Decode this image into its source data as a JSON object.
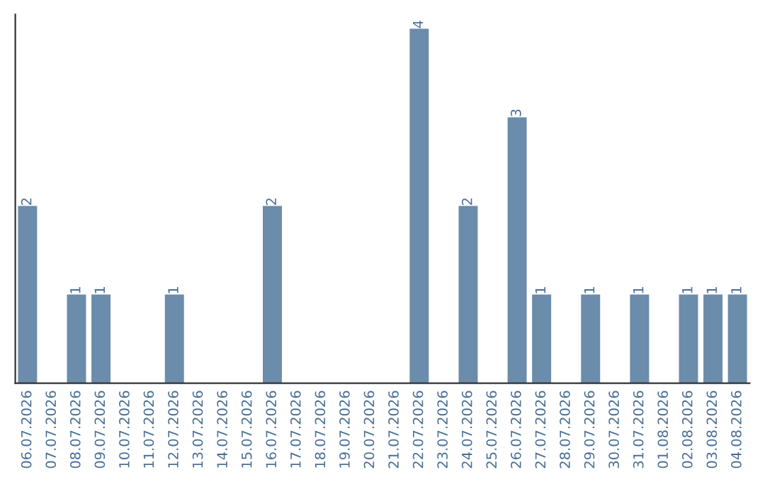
{
  "chart_data": {
    "type": "bar",
    "categories": [
      "06.07.2026",
      "07.07.2026",
      "08.07.2026",
      "09.07.2026",
      "10.07.2026",
      "11.07.2026",
      "12.07.2026",
      "13.07.2026",
      "14.07.2026",
      "15.07.2026",
      "16.07.2026",
      "17.07.2026",
      "18.07.2026",
      "19.07.2026",
      "20.07.2026",
      "21.07.2026",
      "22.07.2026",
      "23.07.2026",
      "24.07.2026",
      "25.07.2026",
      "26.07.2026",
      "27.07.2026",
      "28.07.2026",
      "29.07.2026",
      "30.07.2026",
      "31.07.2026",
      "01.08.2026",
      "02.08.2026",
      "03.08.2026",
      "04.08.2026"
    ],
    "values": [
      2,
      0,
      1,
      1,
      0,
      0,
      1,
      0,
      0,
      0,
      2,
      0,
      0,
      0,
      0,
      0,
      4,
      0,
      2,
      0,
      3,
      1,
      0,
      1,
      0,
      1,
      0,
      1,
      1,
      1
    ],
    "value_labels": [
      "2",
      null,
      "1",
      "1",
      null,
      null,
      "1",
      null,
      null,
      null,
      "2",
      null,
      null,
      null,
      null,
      null,
      "4",
      null,
      "2",
      null,
      "3",
      "1",
      null,
      "1",
      null,
      "1",
      null,
      "1",
      "1",
      "1"
    ],
    "color": "#6b8cab",
    "tick_labels": "x",
    "grid": false,
    "legend": false
  }
}
